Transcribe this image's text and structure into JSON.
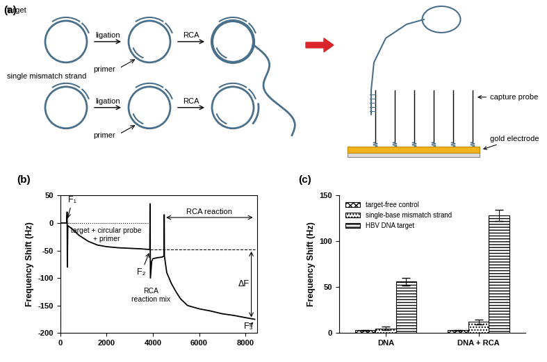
{
  "diagram": {
    "title": "(a)",
    "rows": [
      {
        "label": "target",
        "steps": [
          "ligation",
          "RCA"
        ],
        "primer": "primer"
      },
      {
        "label": "single mismatch strand",
        "steps": [
          "ligation",
          "RCA"
        ],
        "primer": "primer"
      }
    ],
    "surface": {
      "probe_label": "capture probe",
      "electrode_label": "gold electrode"
    }
  },
  "chart_data": [
    {
      "type": "line",
      "title": "(b)",
      "y_label": "Frequency Shift (Hz)",
      "color": "#000000",
      "x": [
        0,
        280,
        300,
        310,
        330,
        500,
        800,
        1200,
        1600,
        2000,
        2500,
        3000,
        3500,
        3800,
        3870,
        3880,
        3895,
        3950,
        4000,
        4200,
        4400,
        4480,
        4490,
        4500,
        4600,
        4800,
        5000,
        5200,
        5500,
        6000,
        6500,
        7000,
        7500,
        8000,
        8400
      ],
      "values": [
        0,
        0,
        20,
        -80,
        -5,
        -10,
        -22,
        -33,
        -40,
        -43,
        -45,
        -46,
        -47,
        -48,
        -48,
        35,
        -100,
        -70,
        -65,
        -63,
        -62,
        -60,
        15,
        -60,
        -90,
        -110,
        -125,
        -138,
        -150,
        -156,
        -160,
        -165,
        -168,
        -172,
        -175
      ],
      "xlim": [
        0,
        8500
      ],
      "ylim": [
        -200,
        50
      ],
      "xticks": [
        0,
        2000,
        4000,
        6000,
        8000
      ],
      "yticks": [
        -200,
        -150,
        -100,
        -50,
        0,
        50
      ],
      "annotations": [
        "F₁",
        "target + circular probe\n+ primer",
        "F₂",
        "RCA\nreaction mix",
        "RCA reaction",
        "ΔF",
        "F₃"
      ]
    },
    {
      "type": "bar",
      "title": "(c)",
      "y_label": "Frequency Shift (Hz)",
      "categories": [
        "DNA",
        "DNA + RCA"
      ],
      "series": [
        {
          "name": "target-free control",
          "color": "#ffffff",
          "values": [
            3,
            3
          ],
          "errors": [
            0.5,
            0.5
          ]
        },
        {
          "name": "single-base mismatch strand",
          "color": "#ffffff",
          "values": [
            5,
            12
          ],
          "errors": [
            2,
            3
          ]
        },
        {
          "name": "HBV DNA target",
          "color": "#ffffff",
          "values": [
            56,
            128
          ],
          "errors": [
            4,
            6
          ]
        }
      ],
      "ylim": [
        0,
        150
      ],
      "yticks": [
        0,
        50,
        100,
        150
      ],
      "legend": "upper left"
    }
  ]
}
